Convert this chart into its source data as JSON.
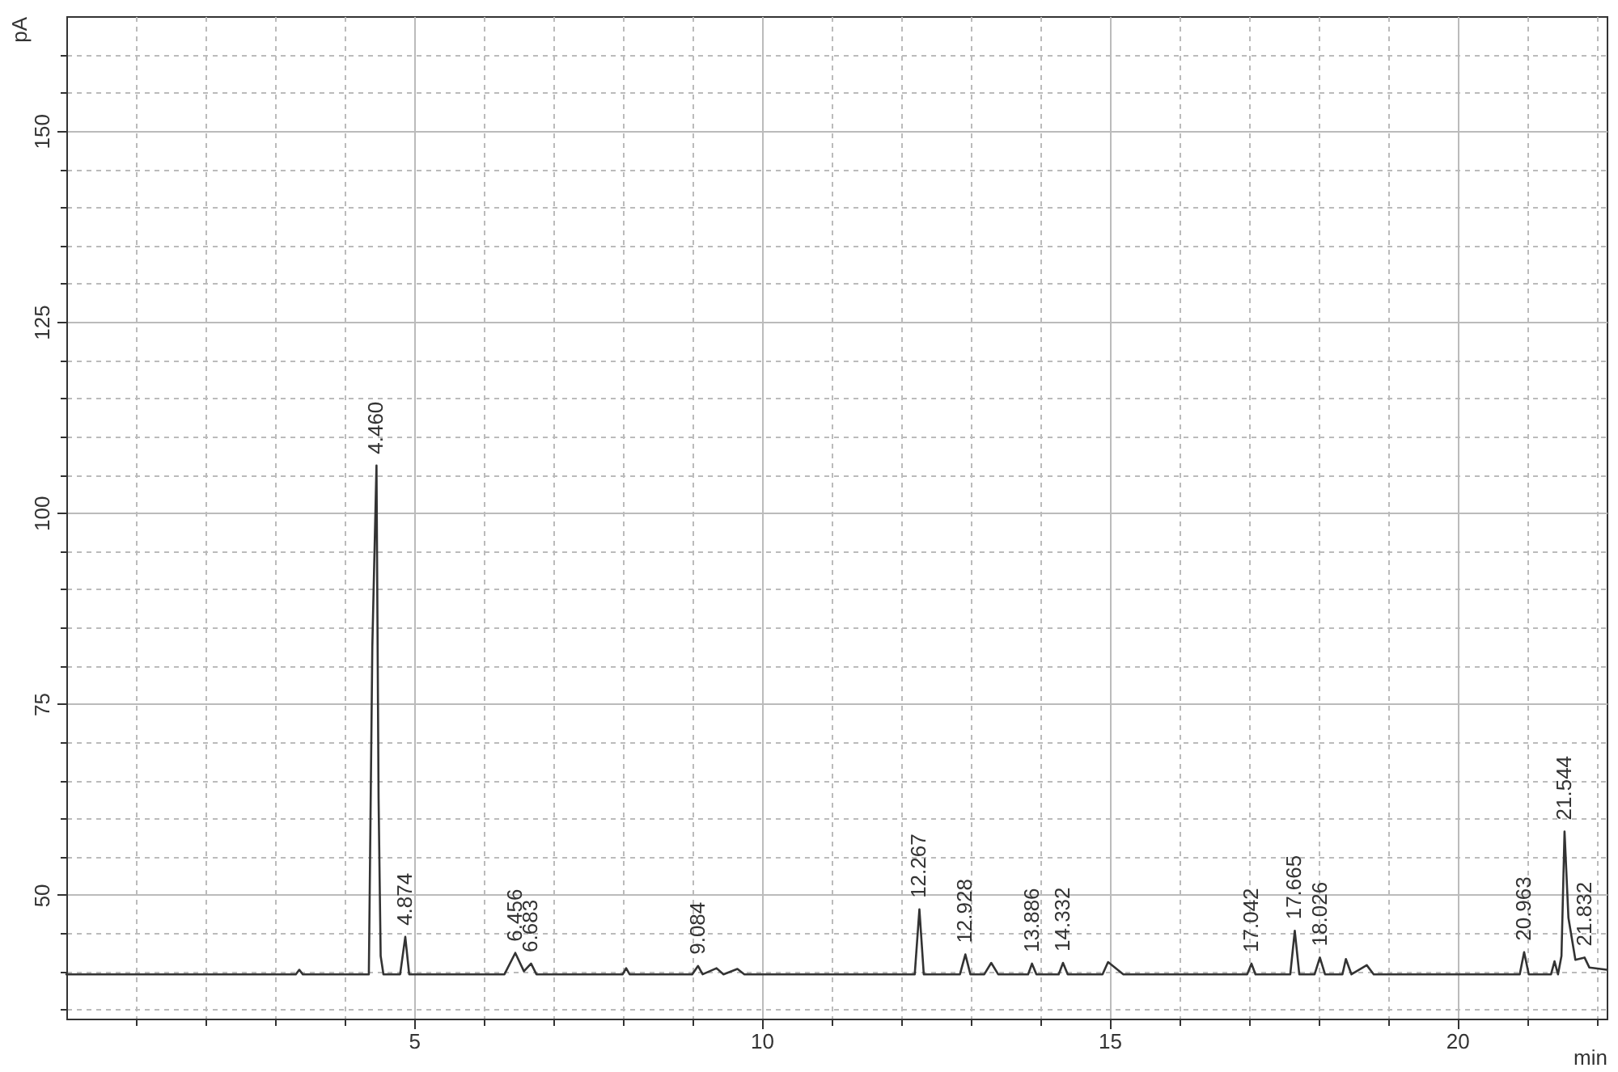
{
  "chart_data": {
    "type": "line",
    "xlabel": "min",
    "ylabel": "pA",
    "xlim": [
      0,
      22.15
    ],
    "ylim": [
      33.8,
      165
    ],
    "xticks": [
      {
        "value": 1,
        "label": null
      },
      {
        "value": 2,
        "label": null
      },
      {
        "value": 3,
        "label": null
      },
      {
        "value": 4,
        "label": null
      },
      5,
      {
        "value": 6,
        "label": null
      },
      {
        "value": 7,
        "label": null
      },
      {
        "value": 8,
        "label": null
      },
      {
        "value": 9,
        "label": null
      },
      10,
      {
        "value": 11,
        "label": null
      },
      {
        "value": 12,
        "label": null
      },
      {
        "value": 13,
        "label": null
      },
      {
        "value": 14,
        "label": null
      },
      15,
      {
        "value": 16,
        "label": null
      },
      {
        "value": 17,
        "label": null
      },
      {
        "value": 18,
        "label": null
      },
      {
        "value": 19,
        "label": null
      },
      20,
      {
        "value": 21,
        "label": null
      },
      {
        "value": 22,
        "label": null
      }
    ],
    "yticks": [
      {
        "value": 35,
        "label": null
      },
      {
        "value": 40,
        "label": null
      },
      {
        "value": 45,
        "label": null
      },
      50,
      {
        "value": 55,
        "label": null
      },
      {
        "value": 60,
        "label": null
      },
      {
        "value": 65,
        "label": null
      },
      {
        "value": 70,
        "label": null
      },
      75,
      {
        "value": 80,
        "label": null
      },
      {
        "value": 85,
        "label": null
      },
      {
        "value": 90,
        "label": null
      },
      {
        "value": 95,
        "label": null
      },
      100,
      {
        "value": 105,
        "label": null
      },
      {
        "value": 110,
        "label": null
      },
      {
        "value": 115,
        "label": null
      },
      {
        "value": 120,
        "label": null
      },
      125,
      {
        "value": 130,
        "label": null
      },
      {
        "value": 135,
        "label": null
      },
      {
        "value": 140,
        "label": null
      },
      {
        "value": 145,
        "label": null
      },
      150,
      {
        "value": 155,
        "label": null
      },
      {
        "value": 160,
        "label": null
      }
    ],
    "grid": true,
    "x": [
      0.0,
      3.3,
      3.35,
      3.4,
      4.35,
      4.4,
      4.46,
      4.49,
      4.52,
      4.56,
      4.8,
      4.874,
      4.93,
      6.3,
      6.456,
      6.58,
      6.683,
      6.76,
      8.0,
      8.05,
      8.1,
      9.0,
      9.084,
      9.15,
      9.35,
      9.45,
      9.65,
      9.75,
      12.2,
      12.267,
      12.33,
      12.85,
      12.928,
      13.0,
      13.2,
      13.3,
      13.4,
      13.83,
      13.886,
      13.95,
      14.27,
      14.332,
      14.4,
      14.9,
      14.98,
      15.2,
      16.98,
      17.042,
      17.1,
      17.6,
      17.665,
      17.73,
      17.95,
      18.026,
      18.1,
      18.35,
      18.4,
      18.48,
      18.7,
      18.8,
      20.9,
      20.963,
      21.03,
      21.35,
      21.4,
      21.45,
      21.5,
      21.544,
      21.6,
      21.7,
      21.832,
      21.9,
      22.15
    ],
    "series": [
      {
        "color": "#333333",
        "values": [
          39.6,
          39.6,
          40.2,
          39.6,
          39.6,
          82.5,
          106.2,
          62.6,
          42.0,
          39.6,
          39.6,
          44.5,
          39.6,
          39.6,
          42.4,
          40.0,
          41.0,
          39.6,
          39.6,
          40.4,
          39.6,
          39.6,
          40.7,
          39.6,
          40.4,
          39.6,
          40.3,
          39.6,
          39.6,
          48.1,
          39.6,
          39.6,
          42.2,
          39.6,
          39.6,
          41.1,
          39.6,
          39.6,
          41.0,
          39.6,
          39.6,
          41.1,
          39.6,
          39.6,
          41.2,
          39.6,
          39.6,
          41.0,
          39.6,
          39.6,
          45.3,
          39.6,
          39.6,
          41.8,
          39.6,
          39.6,
          41.6,
          39.6,
          40.8,
          39.6,
          39.6,
          42.5,
          39.6,
          39.6,
          41.3,
          39.6,
          42.0,
          58.3,
          47.0,
          41.5,
          41.8,
          40.5,
          40.2
        ]
      }
    ],
    "annotations": [
      {
        "text": "4.460",
        "x": 4.46,
        "y": 106.2
      },
      {
        "text": "4.874",
        "x": 4.874,
        "y": 44.5
      },
      {
        "text": "6.456",
        "x": 6.456,
        "y": 42.4
      },
      {
        "text": "6.683",
        "x": 6.683,
        "y": 41.0
      },
      {
        "text": "9.084",
        "x": 9.084,
        "y": 40.7
      },
      {
        "text": "12.267",
        "x": 12.267,
        "y": 48.1
      },
      {
        "text": "12.928",
        "x": 12.928,
        "y": 42.2
      },
      {
        "text": "13.886",
        "x": 13.886,
        "y": 41.0
      },
      {
        "text": "14.332",
        "x": 14.332,
        "y": 41.1
      },
      {
        "text": "17.042",
        "x": 17.042,
        "y": 41.0
      },
      {
        "text": "17.665",
        "x": 17.665,
        "y": 45.3
      },
      {
        "text": "18.026",
        "x": 18.026,
        "y": 41.8
      },
      {
        "text": "20.963",
        "x": 20.963,
        "y": 42.5
      },
      {
        "text": "21.544",
        "x": 21.544,
        "y": 58.3
      },
      {
        "text": "21.832",
        "x": 21.832,
        "y": 41.8
      }
    ]
  }
}
